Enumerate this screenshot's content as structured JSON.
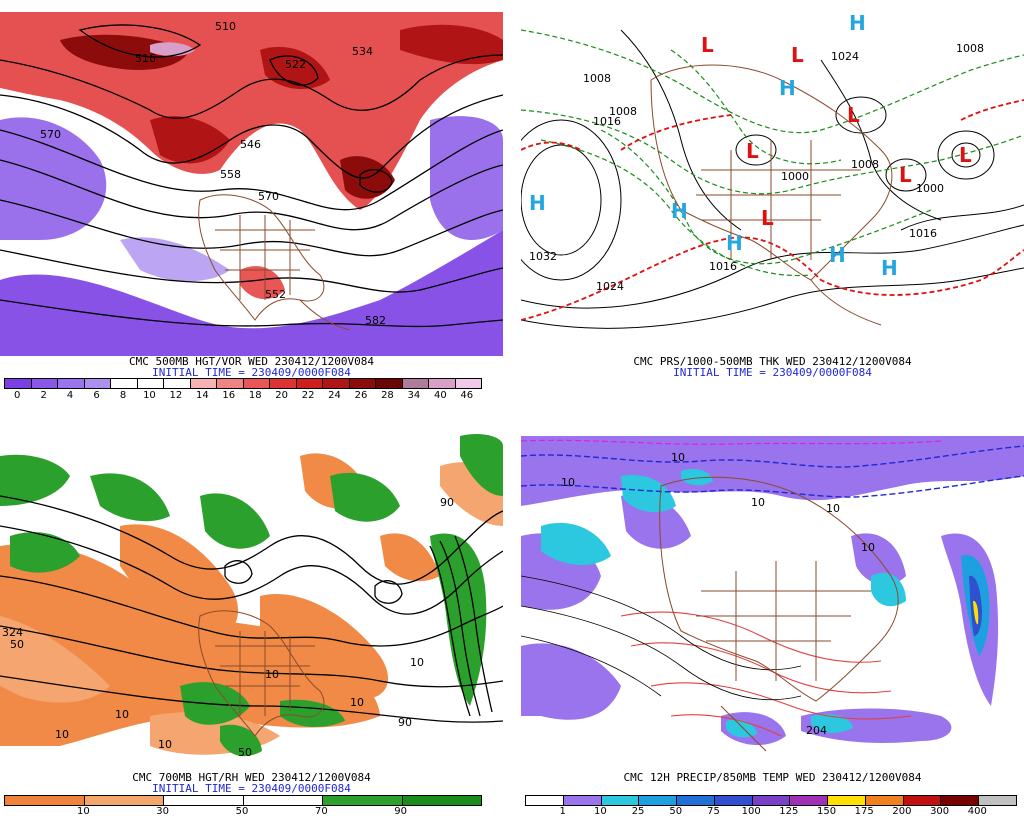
{
  "panels": [
    {
      "id": "p1",
      "caption_line1": "CMC 500MB HGT/VOR WED 230412/1200V084",
      "caption_line2": "INITIAL TIME = 230409/0000F084",
      "contour_labels": [
        "510",
        "582",
        "534",
        "522",
        "516",
        "546",
        "558",
        "570",
        "570",
        "552"
      ],
      "colorbar": {
        "labels": [
          "0",
          "2",
          "4",
          "6",
          "8",
          "10",
          "12",
          "14",
          "16",
          "18",
          "20",
          "22",
          "24",
          "26",
          "28",
          "34",
          "40",
          "46"
        ],
        "colors": [
          "#7b3fe4",
          "#8a58e8",
          "#9a74ec",
          "#ab90f0",
          "#ffffff",
          "#ffffff",
          "#ffffff",
          "#f6b2b2",
          "#f08484",
          "#e85656",
          "#e03232",
          "#d01e1e",
          "#b01414",
          "#8c0c0c",
          "#6a0606",
          "#b07a9a",
          "#d8a0c8",
          "#f0c8e8"
        ]
      }
    },
    {
      "id": "p2",
      "caption_line1": "CMC PRS/1000-500MB THK WED 230412/1200V084",
      "caption_line2": "INITIAL TIME = 230409/0000F084",
      "pressure_labels": [
        "1032",
        "1024",
        "1016",
        "1008",
        "1016",
        "1008",
        "1000",
        "1008",
        "1016",
        "1024",
        "1000",
        "1008"
      ],
      "highs": [
        "H",
        "H",
        "H",
        "H",
        "H",
        "H",
        "H"
      ],
      "lows": [
        "L",
        "L",
        "L",
        "L",
        "L",
        "L",
        "L"
      ]
    },
    {
      "id": "p3",
      "caption_line1": "CMC 700MB HGT/RH WED 230412/1200V084",
      "caption_line2": "INITIAL TIME = 230409/0000F084",
      "contour_labels": [
        "324",
        "50",
        "10",
        "10",
        "10",
        "90",
        "50",
        "10",
        "10",
        "90",
        "10"
      ],
      "colorbar": {
        "labels": [
          "10",
          "30",
          "50",
          "70",
          "90"
        ],
        "colors": [
          "#f0823c",
          "#f2a66c",
          "#ffffff",
          "#ffffff",
          "#2ca02c",
          "#1a8c1a"
        ]
      }
    },
    {
      "id": "p4",
      "caption_line1": "CMC 12H PRECIP/850MB TEMP WED 230412/1200V084",
      "caption_line2": "",
      "contour_labels": [
        "10",
        "10",
        "10",
        "10",
        "204",
        "10"
      ],
      "colorbar": {
        "labels": [
          "1",
          "10",
          "25",
          "50",
          "75",
          "100",
          "125",
          "150",
          "175",
          "200",
          "300",
          "400"
        ],
        "colors": [
          "#ffffff",
          "#9a74ec",
          "#2cc8e0",
          "#1ea0e0",
          "#2070d8",
          "#3050d0",
          "#7a40c8",
          "#a030b8",
          "#ffe000",
          "#f08020",
          "#c01010",
          "#780000",
          "#c0c0c0"
        ]
      }
    }
  ]
}
